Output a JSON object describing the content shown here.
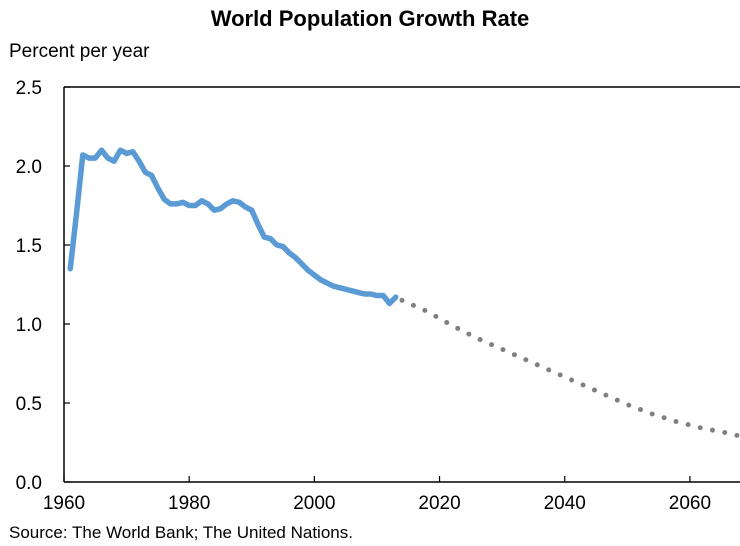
{
  "chart_data": {
    "type": "line",
    "title": "World Population Growth Rate",
    "ylabel": "Percent per year",
    "xlabel": "",
    "source": "Source: The World Bank; The United Nations.",
    "xlim": [
      1960,
      2068
    ],
    "ylim": [
      0,
      2.5
    ],
    "xticks": [
      "1960",
      "1980",
      "2000",
      "2020",
      "2040",
      "2060"
    ],
    "xtick_values": [
      1960,
      1980,
      2000,
      2020,
      2040,
      2060
    ],
    "yticks": [
      "0.0",
      "0.5",
      "1.0",
      "1.5",
      "2.0",
      "2.5"
    ],
    "ytick_values": [
      0,
      0.5,
      1.0,
      1.5,
      2.0,
      2.5
    ],
    "grid": false,
    "series": [
      {
        "style": "solid",
        "color": "#5b9bd5",
        "x": [
          1961,
          1962,
          1963,
          1964,
          1965,
          1966,
          1967,
          1968,
          1969,
          1970,
          1971,
          1972,
          1973,
          1974,
          1975,
          1976,
          1977,
          1978,
          1979,
          1980,
          1981,
          1982,
          1983,
          1984,
          1985,
          1986,
          1987,
          1988,
          1989,
          1990,
          1991,
          1992,
          1993,
          1994,
          1995,
          1996,
          1997,
          1998,
          1999,
          2000,
          2001,
          2002,
          2003,
          2004,
          2005,
          2006,
          2007,
          2008,
          2009,
          2010,
          2011,
          2012,
          2013
        ],
        "y": [
          1.35,
          1.7,
          2.07,
          2.05,
          2.05,
          2.1,
          2.05,
          2.03,
          2.1,
          2.08,
          2.09,
          2.03,
          1.96,
          1.94,
          1.86,
          1.79,
          1.76,
          1.76,
          1.77,
          1.75,
          1.75,
          1.78,
          1.76,
          1.72,
          1.73,
          1.76,
          1.78,
          1.77,
          1.74,
          1.72,
          1.63,
          1.55,
          1.54,
          1.5,
          1.49,
          1.45,
          1.42,
          1.38,
          1.34,
          1.31,
          1.28,
          1.26,
          1.24,
          1.23,
          1.22,
          1.21,
          1.2,
          1.19,
          1.19,
          1.18,
          1.18,
          1.13,
          1.17
        ]
      },
      {
        "style": "dotted",
        "color": "#808080",
        "x": [
          2014,
          2018,
          2022,
          2026,
          2030,
          2034,
          2038,
          2042,
          2046,
          2050,
          2054,
          2058,
          2062,
          2066,
          2068
        ],
        "y": [
          1.15,
          1.08,
          0.99,
          0.91,
          0.84,
          0.77,
          0.7,
          0.63,
          0.56,
          0.49,
          0.43,
          0.38,
          0.34,
          0.31,
          0.29
        ]
      }
    ]
  }
}
